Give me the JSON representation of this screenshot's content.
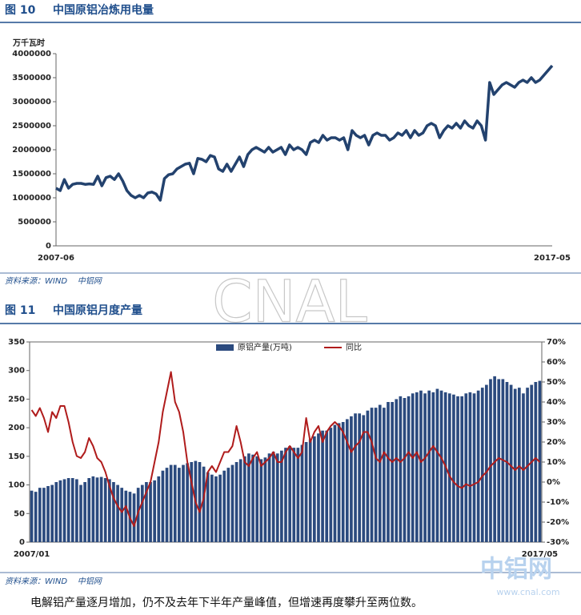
{
  "figures": [
    {
      "number": "图 10",
      "title": "中国原铝冶炼用电量",
      "source": "资料来源：WIND    中铝网"
    },
    {
      "number": "图 11",
      "title": "中国原铝月度产量",
      "source": "资料来源：WIND    中铝网"
    }
  ],
  "watermark": "CNAL",
  "logo": {
    "name": "中铝网",
    "url": "www.cnal.com"
  },
  "caption": "电解铝产量逐月增加，仍不及去年下半年产量峰值，但增速再度攀升至两位数。",
  "chart_data": [
    {
      "type": "line",
      "ylabel": "万千瓦时",
      "color": "#23426e",
      "categories": [
        "2007-06",
        null,
        null,
        null,
        null,
        null,
        null,
        null,
        null,
        null,
        null,
        null,
        null,
        null,
        null,
        null,
        null,
        null,
        null,
        null,
        null,
        null,
        null,
        null,
        null,
        null,
        null,
        null,
        null,
        null,
        null,
        null,
        null,
        null,
        null,
        null,
        null,
        null,
        null,
        null,
        null,
        null,
        null,
        null,
        null,
        null,
        null,
        null,
        null,
        null,
        null,
        null,
        null,
        null,
        null,
        null,
        null,
        null,
        null,
        null,
        null,
        null,
        null,
        null,
        null,
        null,
        null,
        null,
        null,
        null,
        null,
        null,
        null,
        null,
        null,
        null,
        null,
        null,
        null,
        null,
        null,
        null,
        null,
        null,
        null,
        null,
        null,
        null,
        null,
        null,
        null,
        null,
        null,
        null,
        null,
        null,
        null,
        null,
        null,
        null,
        null,
        null,
        null,
        null,
        null,
        null,
        null,
        null,
        null,
        null,
        null,
        null,
        null,
        null,
        null,
        null,
        null,
        null,
        null,
        "2017-05"
      ],
      "values": [
        1200000,
        1150000,
        1380000,
        1200000,
        1280000,
        1300000,
        1300000,
        1280000,
        1290000,
        1280000,
        1450000,
        1250000,
        1420000,
        1450000,
        1380000,
        1500000,
        1350000,
        1150000,
        1050000,
        1000000,
        1050000,
        1000000,
        1100000,
        1120000,
        1080000,
        950000,
        1400000,
        1480000,
        1500000,
        1600000,
        1650000,
        1700000,
        1720000,
        1500000,
        1820000,
        1800000,
        1750000,
        1880000,
        1850000,
        1600000,
        1550000,
        1700000,
        1550000,
        1700000,
        1850000,
        1650000,
        1900000,
        2000000,
        2050000,
        2000000,
        1950000,
        2050000,
        1950000,
        2000000,
        2050000,
        1900000,
        2100000,
        2000000,
        2050000,
        2000000,
        1900000,
        2150000,
        2200000,
        2150000,
        2300000,
        2200000,
        2250000,
        2250000,
        2200000,
        2250000,
        2000000,
        2400000,
        2300000,
        2250000,
        2300000,
        2100000,
        2300000,
        2350000,
        2300000,
        2300000,
        2200000,
        2250000,
        2350000,
        2300000,
        2400000,
        2250000,
        2400000,
        2300000,
        2350000,
        2500000,
        2550000,
        2500000,
        2250000,
        2400000,
        2500000,
        2450000,
        2550000,
        2450000,
        2600000,
        2500000,
        2450000,
        2600000,
        2500000,
        2200000,
        3400000,
        3150000,
        3250000,
        3350000,
        3400000,
        3350000,
        3300000,
        3400000,
        3450000,
        3400000,
        3500000,
        3400000,
        3450000,
        3550000,
        3650000,
        3750000
      ],
      "ylim": [
        0,
        4000000
      ],
      "yticks": [
        0,
        500000,
        1000000,
        1500000,
        2000000,
        2500000,
        3000000,
        3500000,
        4000000
      ],
      "grid": false
    },
    {
      "type": "bar",
      "categories": [
        "2007/01",
        null,
        null,
        null,
        null,
        null,
        null,
        null,
        null,
        null,
        null,
        null,
        null,
        null,
        null,
        null,
        null,
        null,
        null,
        null,
        null,
        null,
        null,
        null,
        null,
        null,
        null,
        null,
        null,
        null,
        null,
        null,
        null,
        null,
        null,
        null,
        null,
        null,
        null,
        null,
        null,
        null,
        null,
        null,
        null,
        null,
        null,
        null,
        null,
        null,
        null,
        null,
        null,
        null,
        null,
        null,
        null,
        null,
        null,
        null,
        null,
        null,
        null,
        null,
        null,
        null,
        null,
        null,
        null,
        null,
        null,
        null,
        null,
        null,
        null,
        null,
        null,
        null,
        null,
        null,
        null,
        null,
        null,
        null,
        null,
        null,
        null,
        null,
        null,
        null,
        null,
        null,
        null,
        null,
        null,
        null,
        null,
        null,
        null,
        null,
        null,
        null,
        null,
        null,
        null,
        null,
        null,
        null,
        null,
        null,
        null,
        null,
        null,
        null,
        null,
        null,
        null,
        null,
        null,
        null,
        null,
        null,
        null,
        null,
        "2017/05"
      ],
      "series": [
        {
          "name": "原铝产量(万吨)",
          "type": "bar",
          "color": "#2b4a7e",
          "values": [
            90,
            88,
            95,
            95,
            98,
            100,
            105,
            108,
            110,
            112,
            112,
            110,
            100,
            105,
            112,
            115,
            113,
            114,
            112,
            110,
            105,
            100,
            95,
            90,
            88,
            85,
            95,
            100,
            105,
            105,
            108,
            115,
            125,
            130,
            135,
            135,
            130,
            135,
            138,
            140,
            142,
            140,
            132,
            122,
            118,
            115,
            118,
            125,
            130,
            135,
            140,
            145,
            150,
            155,
            153,
            150,
            145,
            148,
            155,
            158,
            155,
            160,
            165,
            168,
            165,
            165,
            170,
            175,
            180,
            185,
            190,
            195,
            195,
            200,
            205,
            208,
            210,
            215,
            220,
            225,
            225,
            222,
            230,
            235,
            235,
            240,
            235,
            245,
            245,
            250,
            255,
            252,
            255,
            260,
            262,
            265,
            260,
            265,
            262,
            268,
            265,
            262,
            260,
            258,
            255,
            255,
            260,
            262,
            260,
            265,
            270,
            275,
            285,
            290,
            285,
            285,
            280,
            275,
            268,
            270,
            260,
            270,
            275,
            280,
            282
          ]
        },
        {
          "name": "同比",
          "type": "line",
          "axis": "y2",
          "color": "#b01c1c",
          "values": [
            36,
            33,
            37,
            32,
            25,
            35,
            32,
            38,
            38,
            30,
            20,
            13,
            12,
            15,
            22,
            18,
            12,
            10,
            5,
            -2,
            -8,
            -12,
            -15,
            -12,
            -18,
            -22,
            -15,
            -10,
            -5,
            0,
            10,
            20,
            35,
            45,
            55,
            40,
            35,
            25,
            10,
            0,
            -10,
            -15,
            -8,
            5,
            8,
            5,
            10,
            15,
            15,
            18,
            28,
            20,
            10,
            8,
            12,
            15,
            8,
            10,
            12,
            15,
            10,
            10,
            15,
            18,
            15,
            12,
            15,
            32,
            20,
            25,
            28,
            20,
            25,
            28,
            30,
            28,
            25,
            20,
            15,
            18,
            20,
            25,
            25,
            20,
            12,
            10,
            15,
            12,
            10,
            12,
            10,
            12,
            15,
            12,
            15,
            10,
            12,
            15,
            18,
            15,
            12,
            8,
            3,
            0,
            -2,
            -3,
            -1,
            -2,
            -1,
            0,
            3,
            5,
            8,
            10,
            12,
            11,
            10,
            8,
            6,
            8,
            6,
            8,
            10,
            12,
            10
          ]
        }
      ],
      "ylim": [
        0,
        350
      ],
      "yticks": [
        0,
        50,
        100,
        150,
        200,
        250,
        300,
        350
      ],
      "y2lim": [
        -30,
        70
      ],
      "y2ticks": [
        {
          "value": -30,
          "label": "-30%"
        },
        {
          "value": -20,
          "label": "-20%"
        },
        {
          "value": -10,
          "label": "-10%"
        },
        {
          "value": 0,
          "label": "0%"
        },
        {
          "value": 10,
          "label": "10%"
        },
        {
          "value": 20,
          "label": "20%"
        },
        {
          "value": 30,
          "label": "30%"
        },
        {
          "value": 40,
          "label": "40%"
        },
        {
          "value": 50,
          "label": "50%"
        },
        {
          "value": 60,
          "label": "60%"
        },
        {
          "value": 70,
          "label": "70%"
        }
      ],
      "legend": "top",
      "grid": false
    }
  ]
}
